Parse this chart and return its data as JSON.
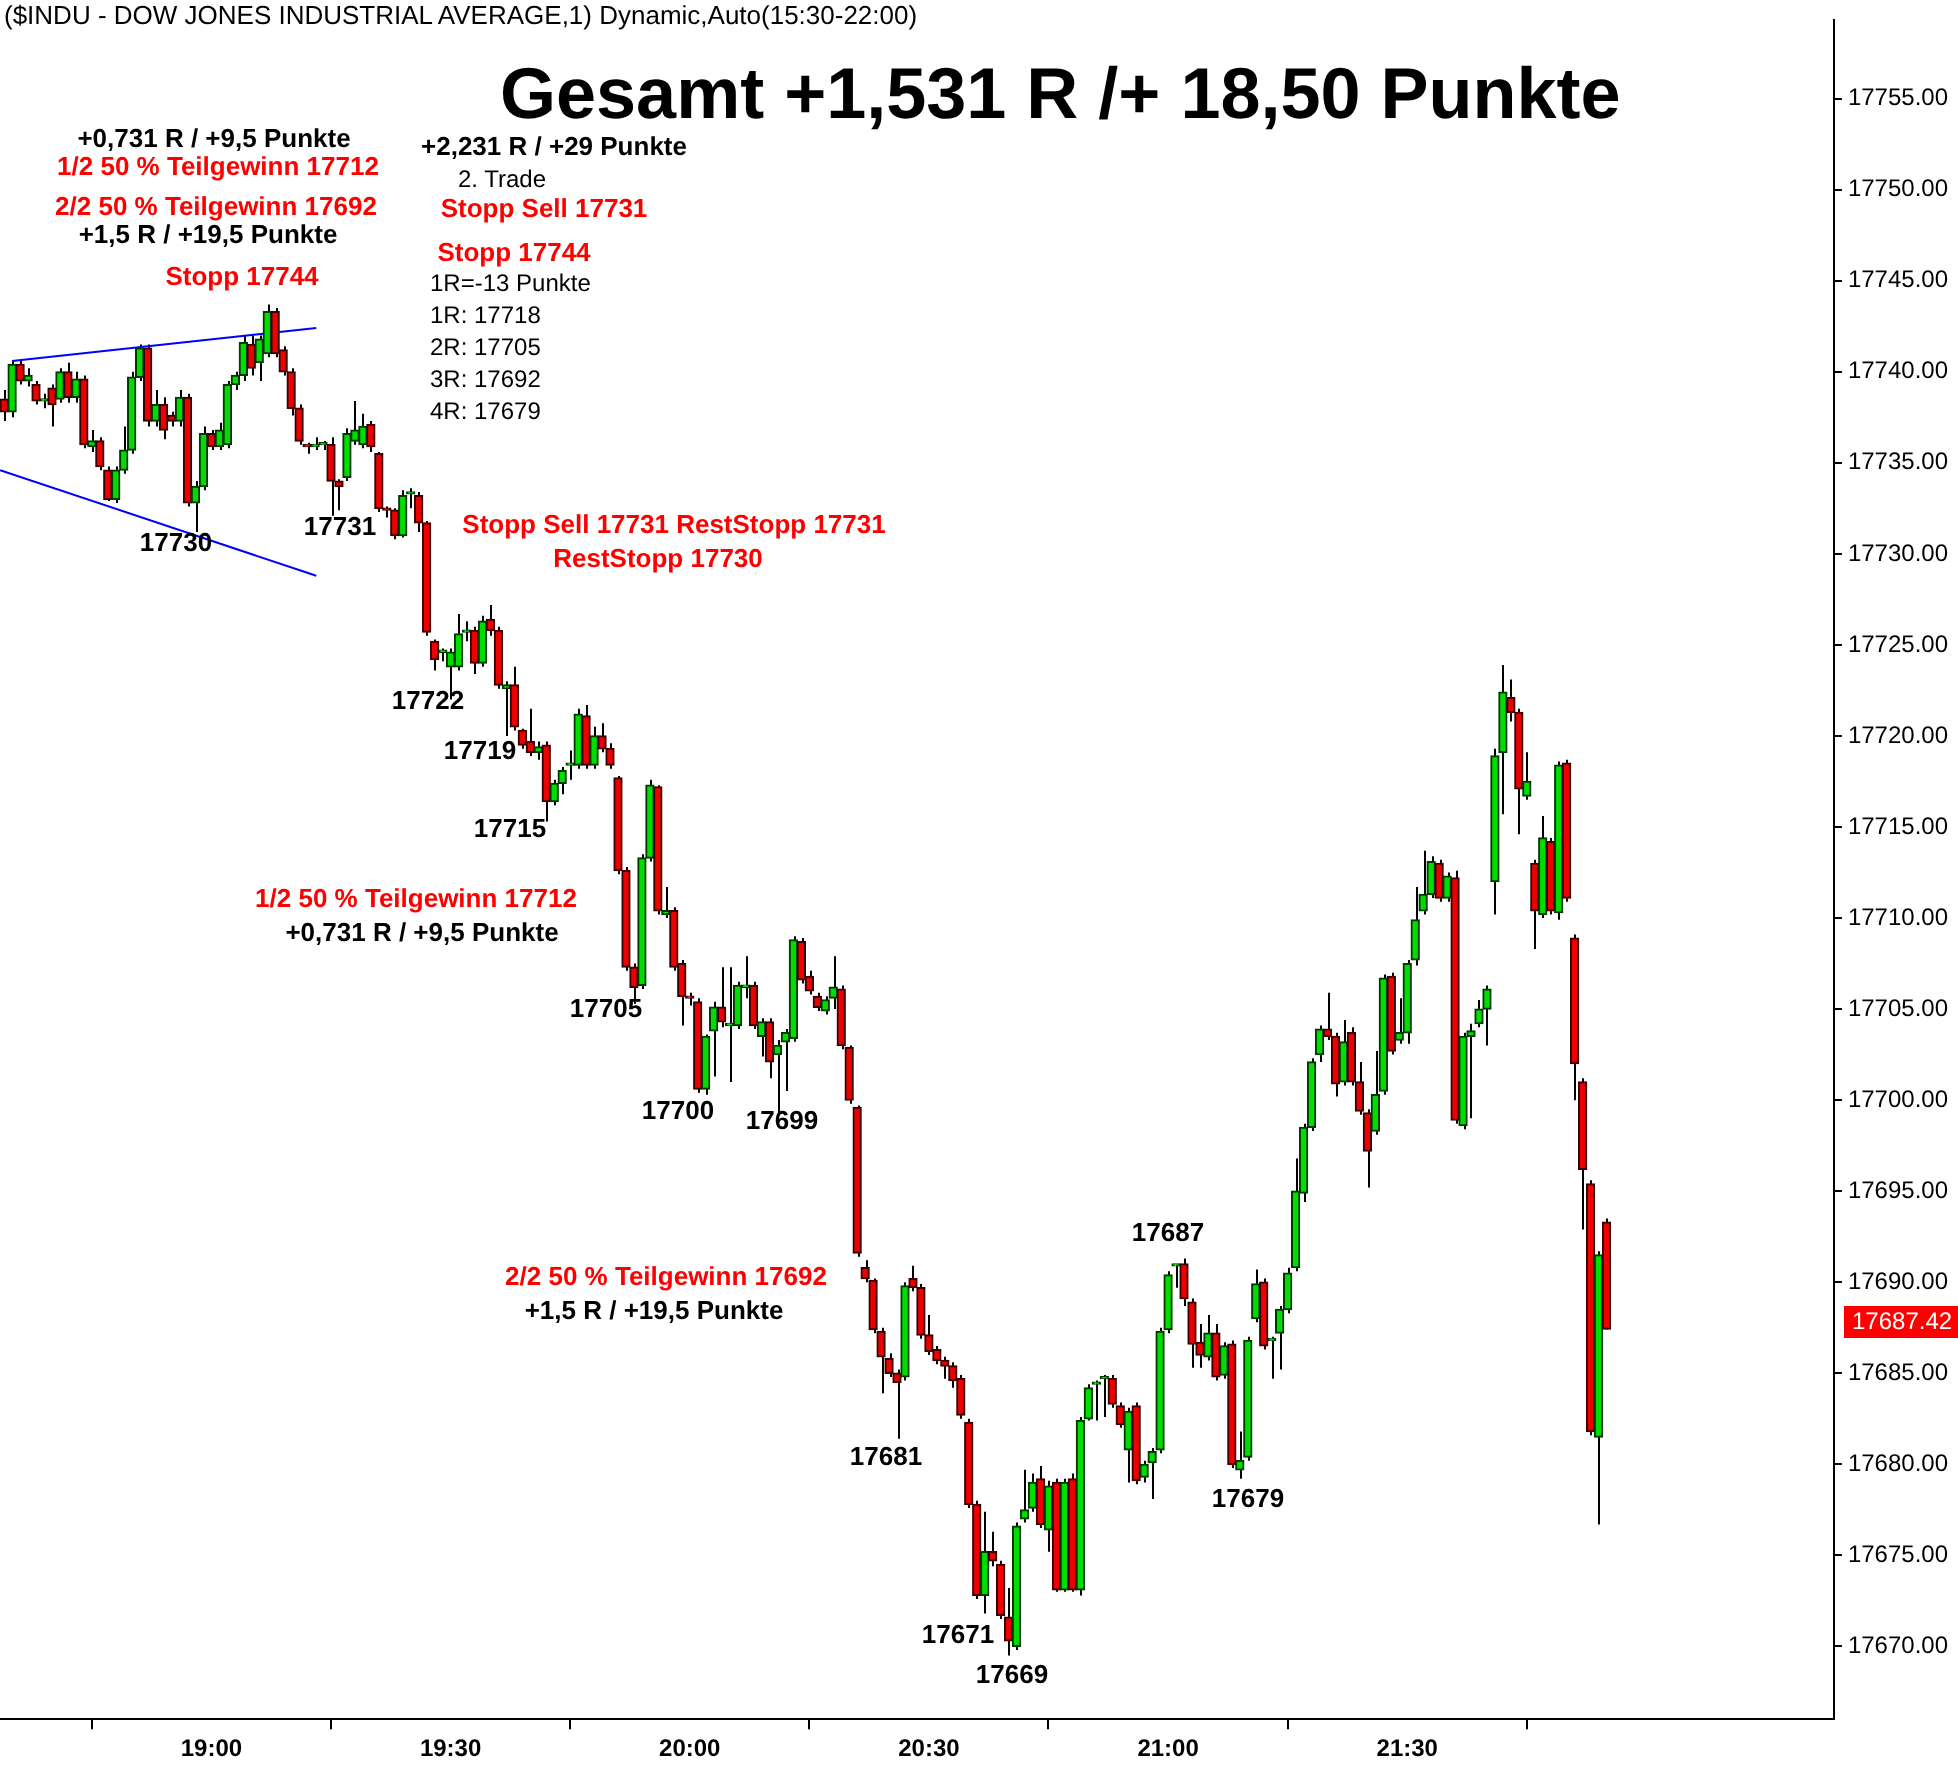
{
  "chart_data": {
    "type": "candlestick",
    "title": "Gesamt +1,531 R /+ 18,50 Punkte",
    "subtitle": "($INDU - DOW JONES INDUSTRIAL AVERAGE,1) Dynamic,Auto(15:30-22:00)",
    "x": [
      18.5667,
      18.5833,
      18.6,
      18.6167,
      18.6333,
      18.65,
      18.6667,
      18.6833,
      18.7,
      18.7167,
      18.7333,
      18.75,
      18.7667,
      18.7833,
      18.8,
      18.8167,
      18.8333,
      18.85,
      18.8667,
      18.8833,
      18.9,
      18.9167,
      18.9333,
      18.95,
      18.9667,
      18.9833,
      19,
      19.0167,
      19.0333,
      19.05,
      19.0667,
      19.0833,
      19.1,
      19.1167,
      19.1333,
      19.15,
      19.1667,
      19.1833,
      19.2,
      19.2167,
      19.2333,
      19.25,
      19.2667,
      19.2833,
      19.3,
      19.3167,
      19.3333,
      19.35,
      19.3667,
      19.3833,
      19.4,
      19.4167,
      19.4333,
      19.45,
      19.4667,
      19.4833,
      19.5,
      19.5167,
      19.5333,
      19.55,
      19.5667,
      19.5833,
      19.6,
      19.6167,
      19.6333,
      19.65,
      19.6667,
      19.6833,
      19.7,
      19.7167,
      19.7333,
      19.75,
      19.7667,
      19.7833,
      19.8,
      19.8167,
      19.8333,
      19.85,
      19.8667,
      19.8833,
      19.9,
      19.9167,
      19.9333,
      19.95,
      19.9667,
      19.9833,
      20,
      20.0167,
      20.0333,
      20.05,
      20.0667,
      20.0833,
      20.1,
      20.1167,
      20.1333,
      20.15,
      20.1667,
      20.1833,
      20.2,
      20.2167,
      20.2333,
      20.25,
      20.2667,
      20.2833,
      20.3,
      20.3167,
      20.3333,
      20.35,
      20.3667,
      20.3833,
      20.4,
      20.4167,
      20.4333,
      20.45,
      20.4667,
      20.4833,
      20.5,
      20.5167,
      20.5333,
      20.55,
      20.5667,
      20.5833,
      20.6,
      20.6167,
      20.6333,
      20.65,
      20.6667,
      20.6833,
      20.7,
      20.7167,
      20.7333,
      20.75,
      20.7667,
      20.7833,
      20.8,
      20.8167,
      20.8333,
      20.85,
      20.8667,
      20.8833,
      20.9,
      20.9167,
      20.9333,
      20.95,
      20.9667,
      20.9833,
      21,
      21.0167,
      21.0333,
      21.05,
      21.0667,
      21.0833,
      21.1,
      21.1167,
      21.1333,
      21.15,
      21.1667,
      21.1833,
      21.2,
      21.2167,
      21.2333,
      21.25,
      21.2667,
      21.2833,
      21.3,
      21.3167,
      21.3333,
      21.35,
      21.3667,
      21.3833,
      21.4,
      21.4167,
      21.4333,
      21.45,
      21.4667,
      21.4833,
      21.5,
      21.5167,
      21.5333,
      21.55,
      21.5667,
      21.5833,
      21.6,
      21.6167,
      21.6333,
      21.65,
      21.6667,
      21.6833,
      21.7,
      21.7167,
      21.7333,
      21.75,
      21.7667,
      21.7833,
      21.8,
      21.8167,
      21.8333,
      21.85,
      21.8667,
      21.8833,
      21.9,
      21.9167
    ],
    "ohlc": [
      [
        17738.5,
        17739,
        17737.3,
        17737.8
      ],
      [
        17737.8,
        17740.6,
        17737.5,
        17740.4
      ],
      [
        17740.4,
        17740.6,
        17739.3,
        17739.5
      ],
      [
        17739.5,
        17740.2,
        17739.2,
        17739.8
      ],
      [
        17739.3,
        17739.5,
        17738.2,
        17738.4
      ],
      [
        17738.4,
        17738.8,
        17738,
        17738.5
      ],
      [
        17739.1,
        17739.3,
        17737,
        17738.2
      ],
      [
        17738.5,
        17740.2,
        17738.3,
        17740
      ],
      [
        17740,
        17740.5,
        17738.3,
        17738.6
      ],
      [
        17738.6,
        17740,
        17738.3,
        17739.6
      ],
      [
        17739.6,
        17739.8,
        17735.8,
        17736
      ],
      [
        17735.9,
        17736.8,
        17735.6,
        17736.2
      ],
      [
        17736.2,
        17736.4,
        17734.6,
        17734.8
      ],
      [
        17734.6,
        17734.8,
        17732.9,
        17733
      ],
      [
        17733,
        17734.8,
        17732.8,
        17734.6
      ],
      [
        17734.6,
        17737,
        17734.4,
        17735.7
      ],
      [
        17735.7,
        17740,
        17735.5,
        17739.7
      ],
      [
        17739.7,
        17741.5,
        17739.5,
        17741.3
      ],
      [
        17741.3,
        17741.5,
        17737,
        17737.3
      ],
      [
        17737.3,
        17739,
        17737,
        17738.2
      ],
      [
        17738.2,
        17738.6,
        17736.3,
        17736.8
      ],
      [
        17737.6,
        17737.8,
        17737,
        17737.3
      ],
      [
        17737.3,
        17739,
        17737,
        17738.6
      ],
      [
        17738.6,
        17738.8,
        17732.6,
        17732.8
      ],
      [
        17732.8,
        17734,
        17731.2,
        17733.7
      ],
      [
        17733.7,
        17737,
        17733.5,
        17736.6
      ],
      [
        17736.6,
        17736.8,
        17735.7,
        17735.9
      ],
      [
        17735.9,
        17737.2,
        17735.7,
        17736.8
      ],
      [
        17736,
        17739.5,
        17735.8,
        17739.3
      ],
      [
        17739.3,
        17740,
        17739,
        17739.8
      ],
      [
        17739.8,
        17742,
        17739.5,
        17741.6
      ],
      [
        17741.5,
        17742,
        17739.8,
        17740.2
      ],
      [
        17740.5,
        17742,
        17739.5,
        17741.8
      ],
      [
        17741,
        17743.7,
        17740.8,
        17743.3
      ],
      [
        17743.3,
        17743.5,
        17740.8,
        17741
      ],
      [
        17741.2,
        17741.4,
        17739.8,
        17740
      ],
      [
        17740,
        17740.2,
        17737.6,
        17738
      ],
      [
        17738,
        17738.2,
        17736,
        17736.2
      ],
      [
        17736,
        17736.1,
        17735.5,
        17735.9
      ],
      [
        17735.9,
        17736.4,
        17735.7,
        17736
      ],
      [
        17736,
        17736.2,
        17735.7,
        17736
      ],
      [
        17736,
        17736.4,
        17732.1,
        17734
      ],
      [
        17734,
        17734.1,
        17732.4,
        17733.7
      ],
      [
        17734.2,
        17736.9,
        17734,
        17736.6
      ],
      [
        17736.2,
        17738.4,
        17736,
        17736.8
      ],
      [
        17736,
        17737.7,
        17735.8,
        17737
      ],
      [
        17737.1,
        17737.3,
        17735.6,
        17735.9
      ],
      [
        17735.5,
        17735.6,
        17732.3,
        17732.5
      ],
      [
        17732.5,
        17732.6,
        17732,
        17732.4
      ],
      [
        17732.4,
        17732.5,
        17730.8,
        17731
      ],
      [
        17731,
        17733.5,
        17730.9,
        17733.2
      ],
      [
        17733.3,
        17733.6,
        17732.5,
        17733.3
      ],
      [
        17733.2,
        17733.4,
        17731.2,
        17731.7
      ],
      [
        17731.7,
        17731.8,
        17725.5,
        17725.7
      ],
      [
        17725.2,
        17725.3,
        17723.6,
        17724.2
      ],
      [
        17724.6,
        17724.8,
        17724.1,
        17724.6
      ],
      [
        17723.8,
        17724.8,
        17722,
        17724.6
      ],
      [
        17723.8,
        17726.7,
        17723.6,
        17725.6
      ],
      [
        17725.7,
        17726.3,
        17725.2,
        17725.8
      ],
      [
        17725.8,
        17726,
        17723.4,
        17724
      ],
      [
        17724,
        17726.6,
        17723.8,
        17726.3
      ],
      [
        17726.4,
        17727.2,
        17725.5,
        17725.8
      ],
      [
        17725.8,
        17726,
        17722.6,
        17722.8
      ],
      [
        17722.6,
        17723,
        17720,
        17722.8
      ],
      [
        17722.8,
        17723.8,
        17720.3,
        17720.5
      ],
      [
        17720.3,
        17720.4,
        17719.3,
        17719.5
      ],
      [
        17719.7,
        17721.5,
        17718.9,
        17719.1
      ],
      [
        17719.1,
        17719.7,
        17718.7,
        17719.4
      ],
      [
        17719.5,
        17719.7,
        17715.3,
        17716.4
      ],
      [
        17716.4,
        17717.6,
        17716.2,
        17717.4
      ],
      [
        17717.4,
        17718.3,
        17716.8,
        17718.1
      ],
      [
        17718.4,
        17719.2,
        17717.6,
        17718.5
      ],
      [
        17718.4,
        17721.5,
        17718.2,
        17721.2
      ],
      [
        17721.1,
        17721.7,
        17718.2,
        17718.4
      ],
      [
        17718.4,
        17720.5,
        17718.2,
        17720
      ],
      [
        17720,
        17720.7,
        17719.1,
        17719.3
      ],
      [
        17719.3,
        17719.6,
        17718.2,
        17718.4
      ],
      [
        17717.7,
        17717.8,
        17712.4,
        17712.6
      ],
      [
        17712.6,
        17712.8,
        17707.1,
        17707.3
      ],
      [
        17707.3,
        17707.5,
        17705.3,
        17706.2
      ],
      [
        17706.3,
        17713.5,
        17706.1,
        17713.3
      ],
      [
        17713.3,
        17717.6,
        17713.1,
        17717.3
      ],
      [
        17717.2,
        17717.3,
        17710.2,
        17710.4
      ],
      [
        17710.2,
        17711.7,
        17710,
        17710.4
      ],
      [
        17710.4,
        17710.6,
        17707.1,
        17707.3
      ],
      [
        17707.5,
        17707.7,
        17704.1,
        17705.7
      ],
      [
        17705.7,
        17705.9,
        17705.2,
        17705.6
      ],
      [
        17705.4,
        17705.6,
        17700.4,
        17700.6
      ],
      [
        17700.6,
        17703.6,
        17700.3,
        17703.5
      ],
      [
        17703.8,
        17705.4,
        17701.3,
        17705.1
      ],
      [
        17705.1,
        17707.3,
        17704,
        17704.3
      ],
      [
        17704.1,
        17707.3,
        17701,
        17704.1
      ],
      [
        17704.1,
        17706.5,
        17703.9,
        17706.3
      ],
      [
        17706.2,
        17707.9,
        17705.6,
        17706.2
      ],
      [
        17706.3,
        17706.5,
        17703.9,
        17704.1
      ],
      [
        17703.5,
        17704.5,
        17702.4,
        17704.3
      ],
      [
        17704.3,
        17704.5,
        17701.2,
        17702.1
      ],
      [
        17702.5,
        17703.3,
        17699.3,
        17703
      ],
      [
        17703.2,
        17703.9,
        17700.5,
        17703.7
      ],
      [
        17703.4,
        17709,
        17703.2,
        17708.8
      ],
      [
        17708.7,
        17708.9,
        17706.4,
        17706.6
      ],
      [
        17706.8,
        17707.1,
        17705.8,
        17706
      ],
      [
        17705.7,
        17705.9,
        17704.9,
        17705.1
      ],
      [
        17704.9,
        17705.7,
        17704.7,
        17705.5
      ],
      [
        17705.6,
        17707.9,
        17705,
        17706.2
      ],
      [
        17706.1,
        17706.3,
        17702.8,
        17703
      ],
      [
        17702.9,
        17703,
        17699.8,
        17700
      ],
      [
        17699.6,
        17699.7,
        17691.4,
        17691.6
      ],
      [
        17690.8,
        17691.2,
        17690,
        17690.2
      ],
      [
        17690.1,
        17690.2,
        17687.2,
        17687.4
      ],
      [
        17687.3,
        17687.5,
        17683.9,
        17685.9
      ],
      [
        17685.8,
        17686.1,
        17684.8,
        17685
      ],
      [
        17685,
        17685.2,
        17681.4,
        17684.5
      ],
      [
        17684.8,
        17690,
        17684.6,
        17689.8
      ],
      [
        17690.2,
        17690.9,
        17689.5,
        17689.7
      ],
      [
        17689.7,
        17689.9,
        17686.9,
        17687.1
      ],
      [
        17687.1,
        17688.2,
        17686,
        17686.2
      ],
      [
        17686.3,
        17686.5,
        17685.5,
        17685.7
      ],
      [
        17685.7,
        17685.9,
        17684.7,
        17685.4
      ],
      [
        17685.4,
        17685.6,
        17684.2,
        17684.6
      ],
      [
        17684.7,
        17684.9,
        17682.5,
        17682.7
      ],
      [
        17682.3,
        17682.5,
        17677.6,
        17677.8
      ],
      [
        17677.8,
        17678,
        17672.6,
        17672.8
      ],
      [
        17672.8,
        17677.4,
        17671.8,
        17675.2
      ],
      [
        17675.2,
        17676.3,
        17674.4,
        17674.7
      ],
      [
        17674.5,
        17674.7,
        17671.5,
        17671.7
      ],
      [
        17671.6,
        17673.2,
        17669.5,
        17670.3
      ],
      [
        17670,
        17676.8,
        17669.8,
        17676.6
      ],
      [
        17677,
        17679.7,
        17676.8,
        17677.5
      ],
      [
        17677.6,
        17679.5,
        17677.4,
        17679
      ],
      [
        17679.2,
        17679.9,
        17676.5,
        17676.7
      ],
      [
        17676.4,
        17679.1,
        17675.2,
        17678.8
      ],
      [
        17679,
        17679.2,
        17673,
        17673.1
      ],
      [
        17673.1,
        17679.2,
        17673,
        17679
      ],
      [
        17679.2,
        17679.5,
        17673,
        17673.1
      ],
      [
        17673.1,
        17682.6,
        17672.8,
        17682.4
      ],
      [
        17682.5,
        17684.4,
        17682.4,
        17684.2
      ],
      [
        17684.4,
        17684.6,
        17682.4,
        17684.4
      ],
      [
        17684.7,
        17684.9,
        17682.6,
        17684.7
      ],
      [
        17684.7,
        17684.9,
        17683.1,
        17683.3
      ],
      [
        17683.2,
        17683.4,
        17682,
        17682.2
      ],
      [
        17680.8,
        17683.1,
        17679,
        17682.9
      ],
      [
        17683.2,
        17683.4,
        17678.9,
        17679.1
      ],
      [
        17679.3,
        17680.2,
        17679,
        17680
      ],
      [
        17680.1,
        17680.9,
        17678.1,
        17680.7
      ],
      [
        17680.8,
        17687.5,
        17680.6,
        17687.3
      ],
      [
        17687.4,
        17690.6,
        17687.2,
        17690.4
      ],
      [
        17690.9,
        17691,
        17689.7,
        17690.9
      ],
      [
        17691,
        17691.3,
        17688.7,
        17689.1
      ],
      [
        17688.9,
        17689.1,
        17685.3,
        17686.6
      ],
      [
        17686.7,
        17687.7,
        17685.3,
        17686
      ],
      [
        17685.9,
        17688.2,
        17685.7,
        17687.2
      ],
      [
        17687.2,
        17687.7,
        17684.6,
        17684.8
      ],
      [
        17684.9,
        17686.7,
        17684.7,
        17686.5
      ],
      [
        17686.6,
        17686.8,
        17679.8,
        17680
      ],
      [
        17679.7,
        17681.8,
        17679.2,
        17680.2
      ],
      [
        17680.4,
        17687,
        17680.2,
        17686.8
      ],
      [
        17688,
        17690.7,
        17687.8,
        17689.9
      ],
      [
        17690,
        17690.2,
        17686.3,
        17686.5
      ],
      [
        17686.8,
        17687,
        17684.7,
        17686.8
      ],
      [
        17687.2,
        17688.7,
        17685.2,
        17688.5
      ],
      [
        17688.5,
        17690.8,
        17688.3,
        17690.5
      ],
      [
        17690.8,
        17696.8,
        17690.6,
        17695
      ],
      [
        17694.9,
        17698.7,
        17694.4,
        17698.5
      ],
      [
        17698.5,
        17702.3,
        17698.3,
        17702.1
      ],
      [
        17702.5,
        17704.1,
        17702.1,
        17703.9
      ],
      [
        17703.9,
        17705.9,
        17703.3,
        17703.5
      ],
      [
        17703.5,
        17703.7,
        17700.2,
        17700.9
      ],
      [
        17701,
        17704.4,
        17700.8,
        17703.2
      ],
      [
        17703.7,
        17704,
        17700.8,
        17701
      ],
      [
        17701,
        17702.1,
        17699.2,
        17699.4
      ],
      [
        17699.3,
        17699.5,
        17695.2,
        17697.2
      ],
      [
        17698.3,
        17702.7,
        17698.1,
        17700.3
      ],
      [
        17700.5,
        17706.9,
        17700.3,
        17706.7
      ],
      [
        17706.8,
        17707,
        17702.5,
        17702.7
      ],
      [
        17703.3,
        17705.6,
        17703.1,
        17703.7
      ],
      [
        17703.7,
        17707.7,
        17703.1,
        17707.5
      ],
      [
        17707.7,
        17711.7,
        17707.4,
        17709.9
      ],
      [
        17710.4,
        17713.7,
        17710.2,
        17711.3
      ],
      [
        17711.3,
        17713.4,
        17711.1,
        17713.1
      ],
      [
        17713,
        17713.2,
        17710.9,
        17711.1
      ],
      [
        17711.1,
        17712.5,
        17710.9,
        17712.3
      ],
      [
        17712.2,
        17712.6,
        17698.7,
        17698.9
      ],
      [
        17698.6,
        17703.7,
        17698.4,
        17703.5
      ],
      [
        17703.5,
        17704.2,
        17699,
        17703.8
      ],
      [
        17704.2,
        17705.5,
        17704,
        17705
      ],
      [
        17705,
        17706.3,
        17703,
        17706.1
      ],
      [
        17712,
        17719.3,
        17710.2,
        17718.9
      ],
      [
        17719.1,
        17723.9,
        17715.7,
        17722.4
      ],
      [
        17722.1,
        17723.1,
        17720.8,
        17721.3
      ],
      [
        17721.3,
        17721.5,
        17714.6,
        17717.1
      ],
      [
        17716.7,
        17719.1,
        17716.5,
        17717.5
      ],
      [
        17713,
        17713.2,
        17708.3,
        17710.4
      ],
      [
        17710.2,
        17715.6,
        17710,
        17714.4
      ],
      [
        17714.2,
        17714.4,
        17710.2,
        17710.4
      ],
      [
        17710.3,
        17718.6,
        17709.9,
        17718.4
      ],
      [
        17718.5,
        17718.7,
        17710.9,
        17711.1
      ],
      [
        17708.9,
        17709.1,
        17700,
        17702
      ],
      [
        17701,
        17701.2,
        17692.9,
        17696.2
      ],
      [
        17695.4,
        17695.6,
        17681.6,
        17681.8
      ],
      [
        17681.5,
        17691.7,
        17676.7,
        17691.5
      ],
      [
        17693.3,
        17693.5,
        17687.4,
        17687.42
      ]
    ],
    "series": [
      {
        "type": "line",
        "color": "#0000ff",
        "x": [
          18.5833,
          19.2192
        ],
        "values": [
          17740.6,
          17742.4
        ]
      },
      {
        "type": "line",
        "color": "#0000ff",
        "x": [
          18.5583,
          19.2192
        ],
        "values": [
          17734.6,
          17728.8
        ]
      }
    ],
    "xlim": [
      18.558,
      22.392
    ],
    "xticks": [
      {
        "value": 19,
        "label": "19:00"
      },
      {
        "value": 19.5,
        "label": "19:30"
      },
      {
        "value": 20,
        "label": "20:00"
      },
      {
        "value": 20.5,
        "label": "20:30"
      },
      {
        "value": 21,
        "label": "21:00"
      },
      {
        "value": 21.5,
        "label": "21:30"
      }
    ],
    "ylim": [
      17666,
      17759.3
    ],
    "yticks": [
      {
        "value": 17670,
        "label": "17670.00"
      },
      {
        "value": 17675,
        "label": "17675.00"
      },
      {
        "value": 17680,
        "label": "17680.00"
      },
      {
        "value": 17685,
        "label": "17685.00"
      },
      {
        "value": 17690,
        "label": "17690.00"
      },
      {
        "value": 17695,
        "label": "17695.00"
      },
      {
        "value": 17700,
        "label": "17700.00"
      },
      {
        "value": 17705,
        "label": "17705.00"
      },
      {
        "value": 17710,
        "label": "17710.00"
      },
      {
        "value": 17715,
        "label": "17715.00"
      },
      {
        "value": 17720,
        "label": "17720.00"
      },
      {
        "value": 17725,
        "label": "17725.00"
      },
      {
        "value": 17730,
        "label": "17730.00"
      },
      {
        "value": 17735,
        "label": "17735.00"
      },
      {
        "value": 17740,
        "label": "17740.00"
      },
      {
        "value": 17745,
        "label": "17745.00"
      },
      {
        "value": 17750,
        "label": "17750.00"
      },
      {
        "value": 17755,
        "label": "17755.00"
      }
    ],
    "annotations": [
      "+0,731 R / +9,5 Punkte",
      "1/2 50 % Teilgewinn 17712",
      "2/2 50 % Teilgewinn 17692",
      "+1,5 R / +19,5 Punkte",
      "Stopp 17744",
      "+2,231 R / +29 Punkte",
      "2. Trade",
      "Stopp Sell 17731",
      "Stopp 17744",
      "1R=-13 Punkte",
      "1R: 17718",
      "2R: 17705",
      "3R: 17692",
      "4R: 17679",
      "17730",
      "17731",
      "Stopp Sell 17731 RestStopp 17731",
      "RestStopp 17730",
      "17722",
      "17719",
      "17715",
      "1/2 50 % Teilgewinn 17712",
      "+0,731 R / +9,5 Punkte",
      "17705",
      "17700",
      "17699",
      "2/2 50 % Teilgewinn 17692",
      "+1,5 R / +19,5 Punkte",
      "17681",
      "17671",
      "17669",
      "17687",
      "17679",
      "17687.42"
    ],
    "grid": false,
    "legend": false,
    "marker": "none"
  }
}
